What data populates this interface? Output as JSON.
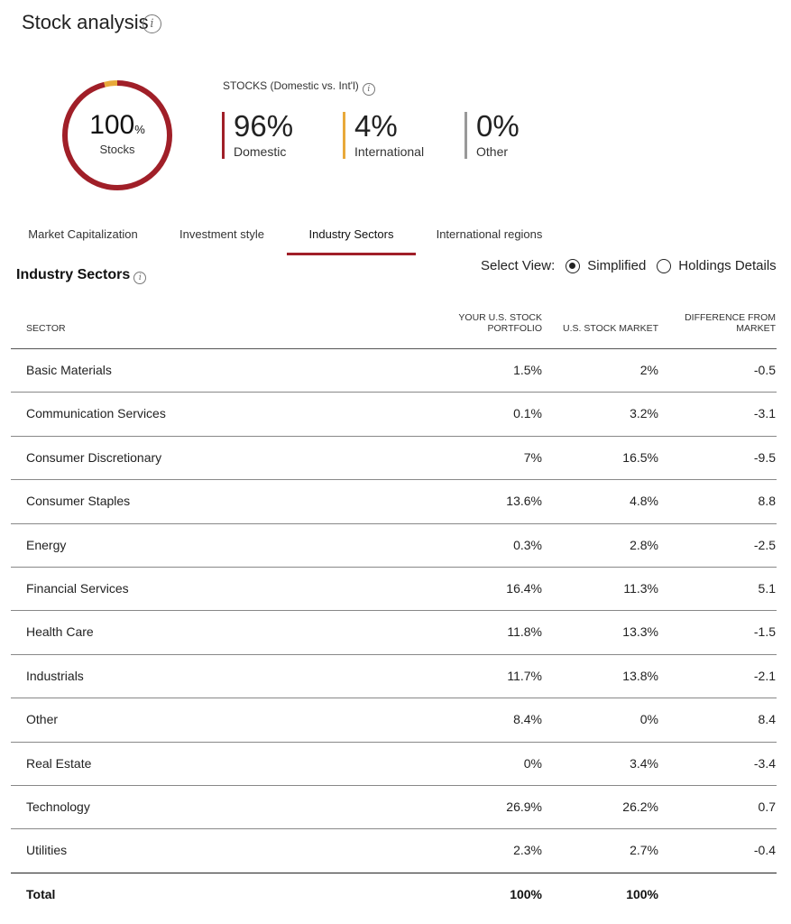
{
  "page_title": "Stock analysis",
  "donut": {
    "value": "100",
    "unit": "%",
    "label": "Stocks",
    "segments": [
      {
        "name": "Domestic",
        "fraction": 0.96,
        "color": "#a01f28"
      },
      {
        "name": "International",
        "fraction": 0.04,
        "color": "#e8a93a"
      },
      {
        "name": "Other",
        "fraction": 0.0,
        "color": "#999999"
      }
    ]
  },
  "allocation": {
    "title": "STOCKS (Domestic vs. Int'l)",
    "items": [
      {
        "pct": "96%",
        "label": "Domestic",
        "color": "#a01f28"
      },
      {
        "pct": "4%",
        "label": "International",
        "color": "#e8a93a"
      },
      {
        "pct": "0%",
        "label": "Other",
        "color": "#999999"
      }
    ]
  },
  "tabs": [
    {
      "label": "Market Capitalization",
      "active": false
    },
    {
      "label": "Investment style",
      "active": false
    },
    {
      "label": "Industry Sectors",
      "active": true
    },
    {
      "label": "International regions",
      "active": false
    }
  ],
  "section": {
    "title": "Industry Sectors",
    "select_view_label": "Select View:",
    "options": [
      {
        "label": "Simplified",
        "checked": true
      },
      {
        "label": "Holdings Details",
        "checked": false
      }
    ]
  },
  "table": {
    "headers": {
      "sector": "SECTOR",
      "portfolio_line1": "YOUR U.S. STOCK",
      "portfolio_line2": "PORTFOLIO",
      "market": "U.S. STOCK MARKET",
      "diff_line1": "DIFFERENCE FROM",
      "diff_line2": "MARKET"
    },
    "rows": [
      {
        "sector": "Basic Materials",
        "portfolio": "1.5%",
        "market": "2%",
        "diff": "-0.5"
      },
      {
        "sector": "Communication Services",
        "portfolio": "0.1%",
        "market": "3.2%",
        "diff": "-3.1"
      },
      {
        "sector": "Consumer Discretionary",
        "portfolio": "7%",
        "market": "16.5%",
        "diff": "-9.5"
      },
      {
        "sector": "Consumer Staples",
        "portfolio": "13.6%",
        "market": "4.8%",
        "diff": "8.8"
      },
      {
        "sector": "Energy",
        "portfolio": "0.3%",
        "market": "2.8%",
        "diff": "-2.5"
      },
      {
        "sector": "Financial Services",
        "portfolio": "16.4%",
        "market": "11.3%",
        "diff": "5.1"
      },
      {
        "sector": "Health Care",
        "portfolio": "11.8%",
        "market": "13.3%",
        "diff": "-1.5"
      },
      {
        "sector": "Industrials",
        "portfolio": "11.7%",
        "market": "13.8%",
        "diff": "-2.1"
      },
      {
        "sector": "Other",
        "portfolio": "8.4%",
        "market": "0%",
        "diff": "8.4"
      },
      {
        "sector": "Real Estate",
        "portfolio": "0%",
        "market": "3.4%",
        "diff": "-3.4"
      },
      {
        "sector": "Technology",
        "portfolio": "26.9%",
        "market": "26.2%",
        "diff": "0.7"
      },
      {
        "sector": "Utilities",
        "portfolio": "2.3%",
        "market": "2.7%",
        "diff": "-0.4"
      }
    ],
    "total": {
      "label": "Total",
      "portfolio": "100%",
      "market": "100%"
    }
  },
  "icons": {
    "info": "info-icon",
    "radio": "radio-button"
  },
  "colors": {
    "accent": "#a01f28",
    "international": "#e8a93a",
    "other": "#999999"
  }
}
